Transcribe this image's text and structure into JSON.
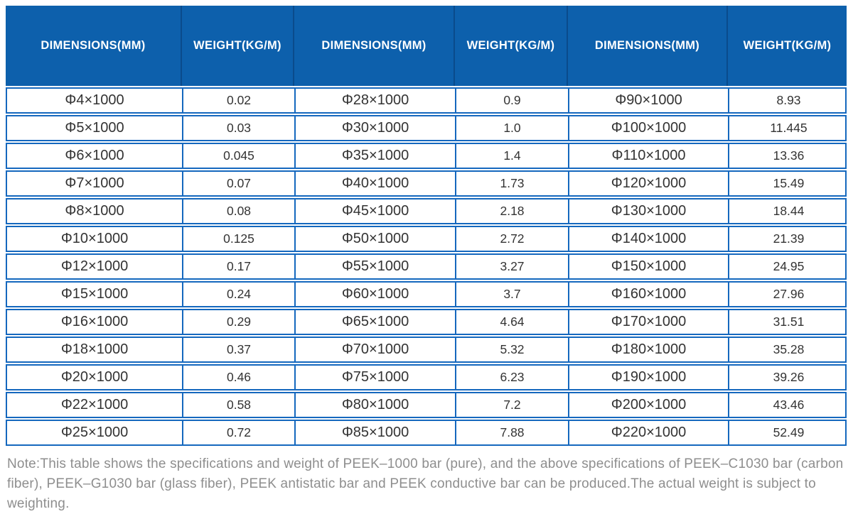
{
  "colors": {
    "header_bg": "#0D60AC",
    "header_divider": "#0A4B8C",
    "header_text": "#FFFFFF",
    "body_border": "#1568BE",
    "cell_text": "#333333",
    "note_text": "#8E8E8E",
    "page_bg": "#FFFFFF"
  },
  "table": {
    "header_cells": [
      "DIMENSIONS(MM)",
      "WEIGHT(KG/M)",
      "DIMENSIONS(MM)",
      "WEIGHT(KG/M)",
      "DIMENSIONS(MM)",
      "WEIGHT(KG/M)"
    ],
    "rows": [
      [
        "Φ4×1000",
        "0.02",
        "Φ28×1000",
        "0.9",
        "Φ90×1000",
        "8.93"
      ],
      [
        "Φ5×1000",
        "0.03",
        "Φ30×1000",
        "1.0",
        "Φ100×1000",
        "11.445"
      ],
      [
        "Φ6×1000",
        "0.045",
        "Φ35×1000",
        "1.4",
        "Φ110×1000",
        "13.36"
      ],
      [
        "Φ7×1000",
        "0.07",
        "Φ40×1000",
        "1.73",
        "Φ120×1000",
        "15.49"
      ],
      [
        "Φ8×1000",
        "0.08",
        "Φ45×1000",
        "2.18",
        "Φ130×1000",
        "18.44"
      ],
      [
        "Φ10×1000",
        "0.125",
        "Φ50×1000",
        "2.72",
        "Φ140×1000",
        "21.39"
      ],
      [
        "Φ12×1000",
        "0.17",
        "Φ55×1000",
        "3.27",
        "Φ150×1000",
        "24.95"
      ],
      [
        "Φ15×1000",
        "0.24",
        "Φ60×1000",
        "3.7",
        "Φ160×1000",
        "27.96"
      ],
      [
        "Φ16×1000",
        "0.29",
        "Φ65×1000",
        "4.64",
        "Φ170×1000",
        "31.51"
      ],
      [
        "Φ18×1000",
        "0.37",
        "Φ70×1000",
        "5.32",
        "Φ180×1000",
        "35.28"
      ],
      [
        "Φ20×1000",
        "0.46",
        "Φ75×1000",
        "6.23",
        "Φ190×1000",
        "39.26"
      ],
      [
        "Φ22×1000",
        "0.58",
        "Φ80×1000",
        "7.2",
        "Φ200×1000",
        "43.46"
      ],
      [
        "Φ25×1000",
        "0.72",
        "Φ85×1000",
        "7.88",
        "Φ220×1000",
        "52.49"
      ]
    ]
  },
  "note": "Note:This table shows the specifications and weight of PEEK–1000 bar (pure), and the above specifications of PEEK–C1030 bar (carbon fiber), PEEK–G1030 bar (glass fiber), PEEK antistatic bar and PEEK conductive bar can be produced.The actual weight is subject to weighting."
}
